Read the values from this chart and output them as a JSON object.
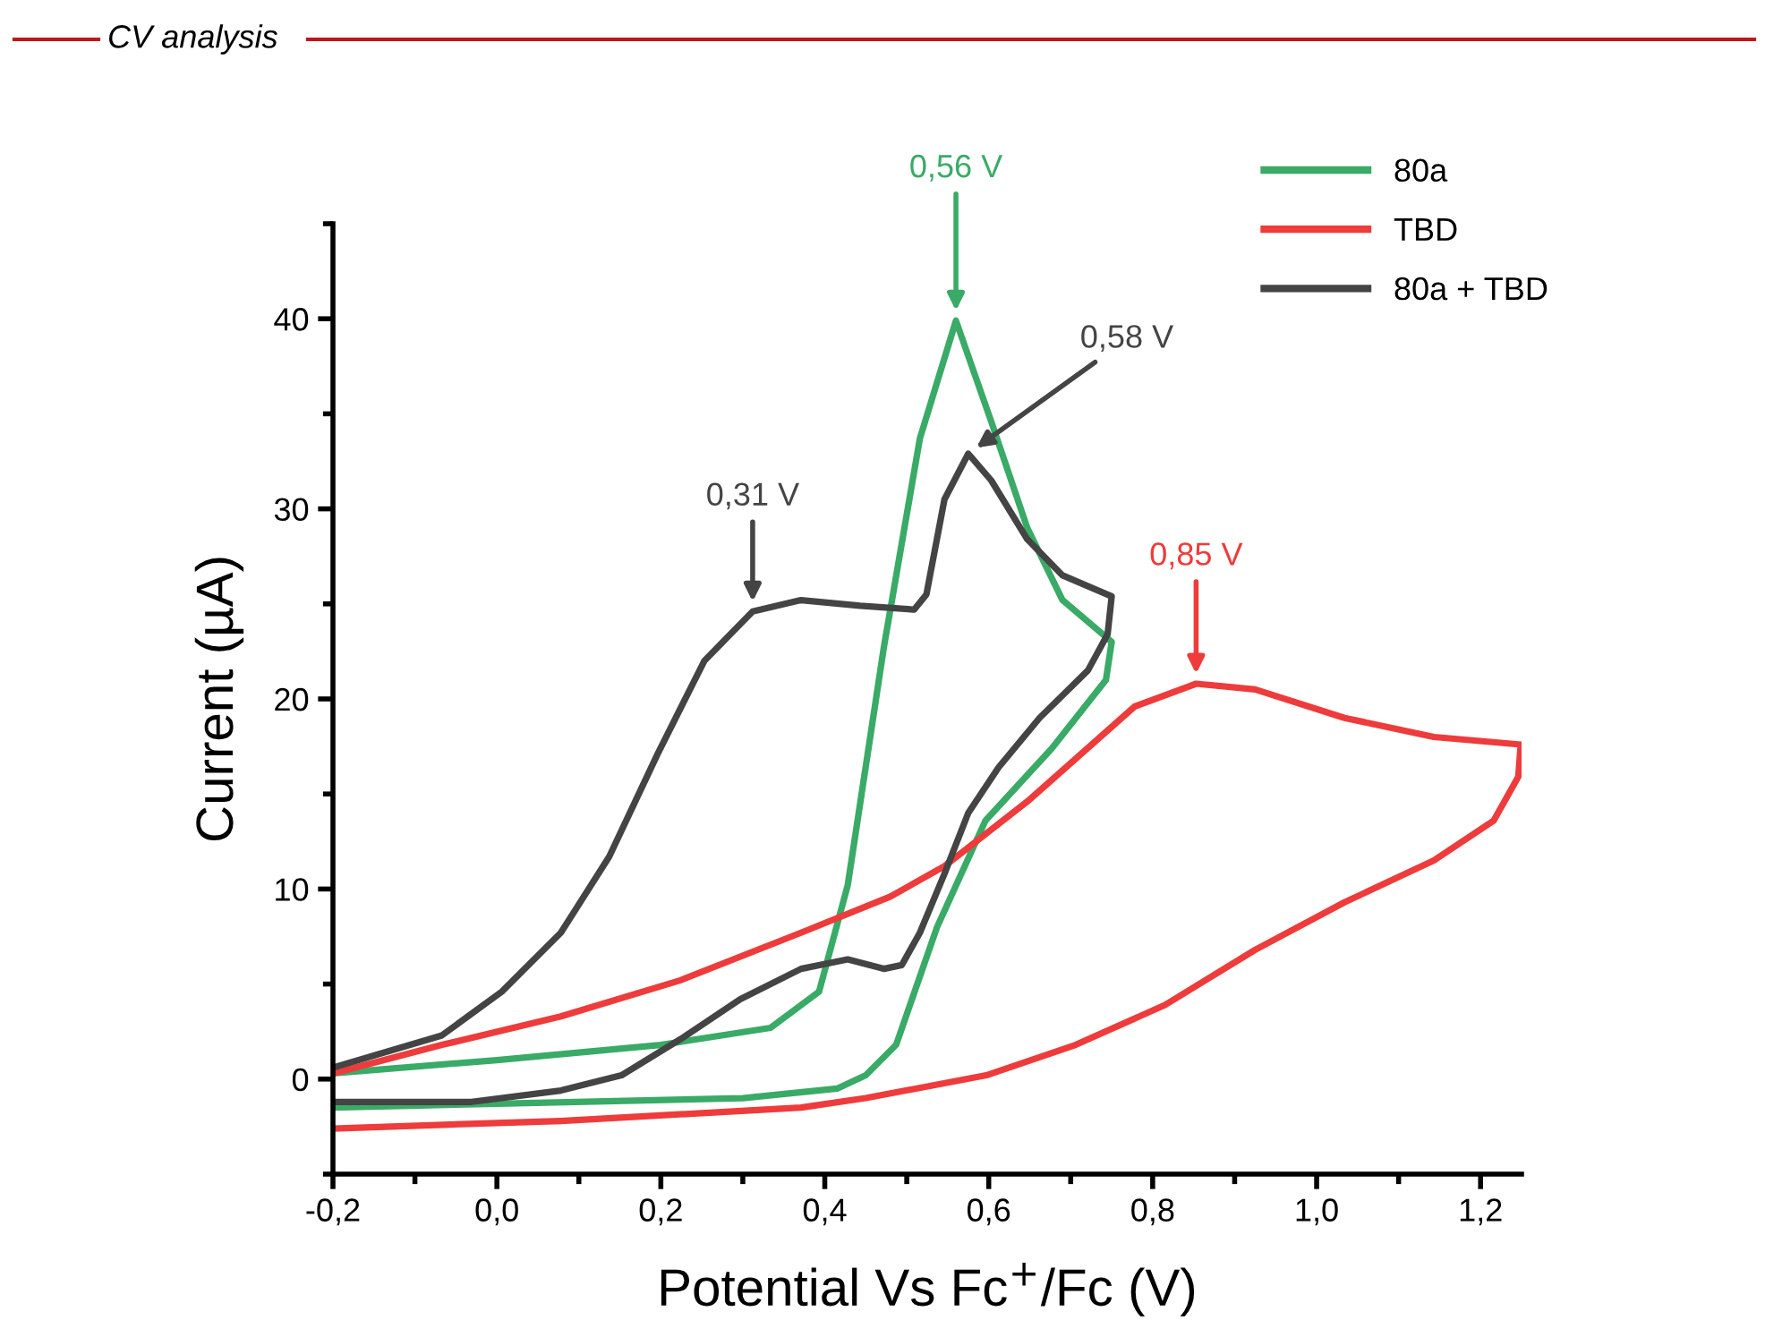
{
  "chart_data": {
    "type": "line",
    "title": "CV analysis",
    "xlabel": "Potential Vs Fc$^{+}$/Fc (V)",
    "ylabel": "Current (µA)",
    "xlim": [
      -0.2,
      1.25
    ],
    "ylim": [
      -5,
      45
    ],
    "xticks": [
      {
        "value": -0.2,
        "label": "-0,2"
      },
      {
        "value": 0.0,
        "label": "0,0"
      },
      {
        "value": 0.2,
        "label": "0,2"
      },
      {
        "value": 0.4,
        "label": "0,4"
      },
      {
        "value": 0.6,
        "label": "0,6"
      },
      {
        "value": 0.8,
        "label": "0,8"
      },
      {
        "value": 1.0,
        "label": "1,0"
      },
      {
        "value": 1.2,
        "label": "1,2"
      }
    ],
    "yticks": [
      0,
      10,
      20,
      30,
      40
    ],
    "grid": false,
    "legend": "top right",
    "marker": "none",
    "line_style": "solid",
    "series": [
      {
        "name": "80a",
        "color": "#3aaa67",
        "x": [
          -0.2,
          0.0,
          0.2,
          0.334,
          0.393,
          0.428,
          0.472,
          0.516,
          0.56,
          0.603,
          0.647,
          0.69,
          0.75,
          0.743,
          0.677,
          0.596,
          0.537,
          0.487,
          0.45,
          0.415,
          0.3,
          0.0,
          -0.2
        ],
        "values": [
          0.3,
          1.0,
          1.8,
          2.7,
          4.6,
          10.2,
          22.7,
          33.7,
          39.9,
          34.6,
          29.0,
          25.2,
          23.0,
          21.0,
          17.4,
          13.6,
          8.0,
          1.8,
          0.2,
          -0.5,
          -1.0,
          -1.3,
          -1.5
        ]
      },
      {
        "name": "TBD",
        "color": "#ee3b3b",
        "x": [
          -0.2,
          -0.067,
          0.078,
          0.224,
          0.371,
          0.48,
          0.546,
          0.647,
          0.778,
          0.853,
          0.925,
          1.034,
          1.143,
          1.249,
          1.246,
          1.216,
          1.143,
          1.034,
          0.925,
          0.815,
          0.706,
          0.597,
          0.45,
          0.371,
          0.078,
          -0.2
        ],
        "values": [
          0.3,
          1.8,
          3.3,
          5.2,
          7.7,
          9.6,
          11.2,
          14.6,
          19.6,
          20.8,
          20.5,
          19.0,
          18.0,
          17.6,
          15.9,
          13.6,
          11.5,
          9.3,
          6.8,
          3.9,
          1.8,
          0.2,
          -1.0,
          -1.5,
          -2.2,
          -2.6
        ]
      },
      {
        "name": "80a + TBD",
        "color": "#444444",
        "x": [
          -0.2,
          -0.067,
          0.006,
          0.078,
          0.137,
          0.196,
          0.253,
          0.312,
          0.371,
          0.443,
          0.509,
          0.524,
          0.546,
          0.575,
          0.603,
          0.647,
          0.69,
          0.75,
          0.745,
          0.721,
          0.662,
          0.612,
          0.575,
          0.546,
          0.516,
          0.494,
          0.472,
          0.428,
          0.371,
          0.297,
          0.224,
          0.152,
          0.078,
          -0.031,
          -0.2
        ],
        "values": [
          0.6,
          2.3,
          4.6,
          7.7,
          11.7,
          17.1,
          22.0,
          24.6,
          25.2,
          24.9,
          24.7,
          25.5,
          30.5,
          32.9,
          31.5,
          28.4,
          26.5,
          25.4,
          23.4,
          21.5,
          19.0,
          16.4,
          14.0,
          10.8,
          7.7,
          6.0,
          5.8,
          6.3,
          5.8,
          4.2,
          2.1,
          0.2,
          -0.6,
          -1.2,
          -1.2
        ]
      }
    ],
    "annotations": [
      {
        "text": "0,56 V",
        "x": 0.56,
        "y": 39.9
      },
      {
        "text": "0,58 V",
        "x": 0.575,
        "y": 32.9
      },
      {
        "text": "0,31 V",
        "x": 0.312,
        "y": 24.6
      },
      {
        "text": "0,85 V",
        "x": 0.853,
        "y": 20.8
      }
    ]
  }
}
